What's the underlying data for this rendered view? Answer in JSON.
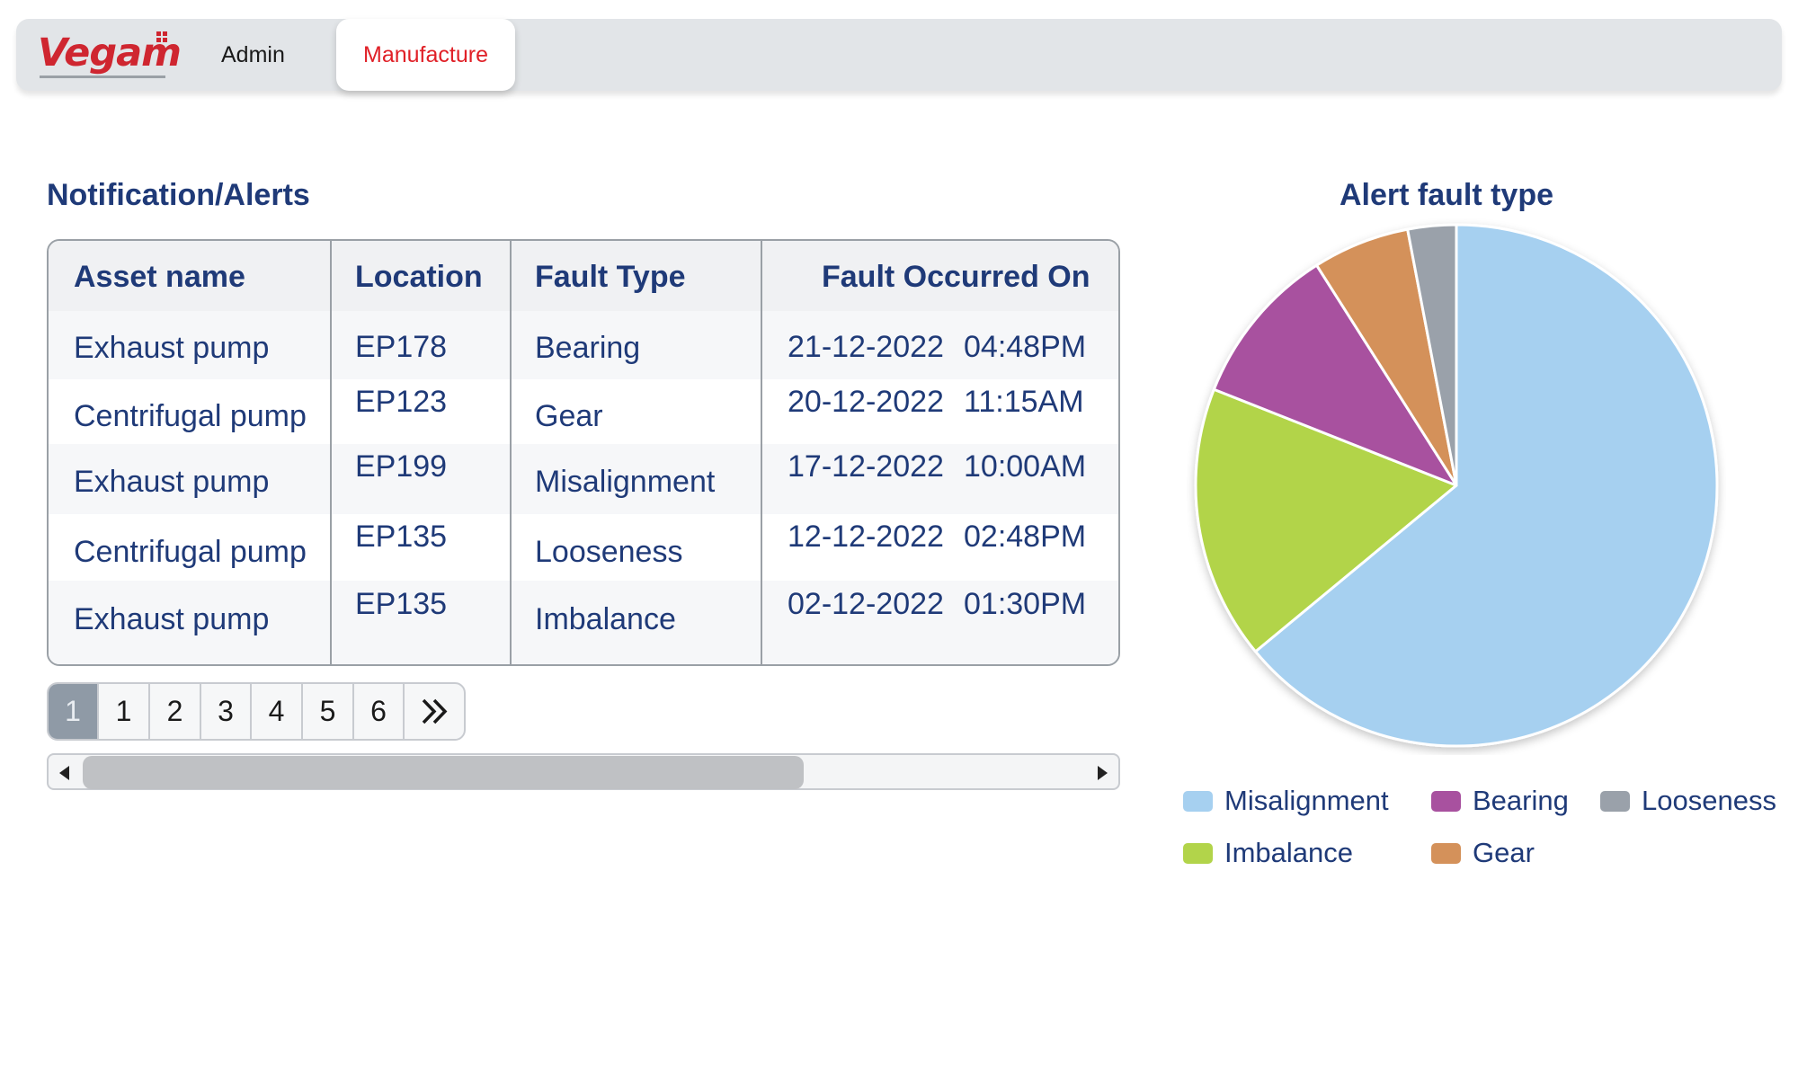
{
  "header": {
    "logo_text": "Vegam",
    "nav": [
      {
        "label": "Admin",
        "active": false
      },
      {
        "label": "Manufacture",
        "active": true
      }
    ]
  },
  "alerts": {
    "title": "Notification/Alerts",
    "columns": [
      "Asset name",
      "Location",
      "Fault Type",
      "Fault Occurred On"
    ],
    "rows": [
      {
        "asset": "Exhaust pump",
        "location": "EP178",
        "fault": "Bearing",
        "date": "21-12-2022",
        "time": "04:48PM"
      },
      {
        "asset": "Centrifugal pump",
        "location": "EP123",
        "fault": "Gear",
        "date": "20-12-2022",
        "time": "11:15AM"
      },
      {
        "asset": "Exhaust pump",
        "location": "EP199",
        "fault": "Misalignment",
        "date": "17-12-2022",
        "time": "10:00AM"
      },
      {
        "asset": "Centrifugal pump",
        "location": "EP135",
        "fault": "Looseness",
        "date": "12-12-2022",
        "time": "02:48PM"
      },
      {
        "asset": "Exhaust pump",
        "location": "EP135",
        "fault": "Imbalance",
        "date": "02-12-2022",
        "time": "01:30PM"
      }
    ]
  },
  "pagination": {
    "current": "1",
    "pages": [
      "1",
      "2",
      "3",
      "4",
      "5",
      "6"
    ]
  },
  "scrollbar": {
    "thumb_fraction": 0.72
  },
  "chart_data": {
    "type": "pie",
    "title": "Alert fault type",
    "slices": [
      {
        "label": "Misalignment",
        "value": 64,
        "color": "#a6d0f0"
      },
      {
        "label": "Imbalance",
        "value": 17,
        "color": "#b2d44a"
      },
      {
        "label": "Bearing",
        "value": 10,
        "color": "#a8519f"
      },
      {
        "label": "Gear",
        "value": 6,
        "color": "#d4915a"
      },
      {
        "label": "Looseness",
        "value": 3,
        "color": "#9aa1aa"
      }
    ],
    "legend": [
      {
        "label": "Misalignment",
        "color": "#a6d0f0"
      },
      {
        "label": "Bearing",
        "color": "#a8519f"
      },
      {
        "label": "Looseness",
        "color": "#9aa1aa"
      },
      {
        "label": "Imbalance",
        "color": "#b2d44a"
      },
      {
        "label": "Gear",
        "color": "#d4915a"
      }
    ],
    "legend_position": "bottom"
  },
  "colors": {
    "brand_red": "#cf2630",
    "accent_blue": "#1f3a78",
    "header_bg": "#e2e5e8"
  }
}
